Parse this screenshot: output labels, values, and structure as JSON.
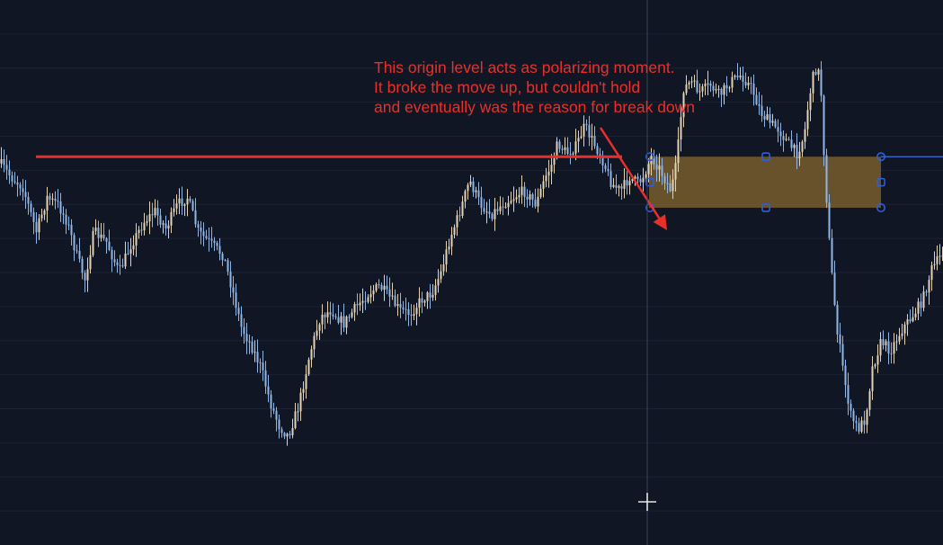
{
  "annotation": {
    "lines": [
      "This origin level acts as polarizing moment.",
      "It broke the move up, but couldn't hold",
      "and eventually was the reason for break down"
    ]
  },
  "colors": {
    "background": "#111624",
    "grid": "#1b2233",
    "candle_bull": "#e3d2b4",
    "candle_bear": "#8fb6e6",
    "level_line": "#e8302b",
    "annotation_text": "#e8302b",
    "zone_fill": "#8a6a2e",
    "zone_handles": "#2f5fd8",
    "horizontal_ray": "#3c6fe0",
    "crosshair": "#3a4256"
  },
  "icons": {
    "cursor": "crosshair-plus-icon"
  },
  "chart_data": {
    "type": "candlestick",
    "x": "bars (no visible time axis)",
    "price_path": [
      [
        0,
        18
      ],
      [
        12,
        22
      ],
      [
        25,
        25
      ],
      [
        40,
        38
      ],
      [
        52,
        28
      ],
      [
        64,
        30
      ],
      [
        74,
        35
      ],
      [
        85,
        45
      ],
      [
        94,
        52
      ],
      [
        104,
        38
      ],
      [
        118,
        41
      ],
      [
        132,
        50
      ],
      [
        145,
        42
      ],
      [
        160,
        35
      ],
      [
        172,
        32
      ],
      [
        184,
        37
      ],
      [
        197,
        30
      ],
      [
        208,
        28
      ],
      [
        220,
        38
      ],
      [
        236,
        42
      ],
      [
        248,
        45
      ],
      [
        258,
        55
      ],
      [
        268,
        66
      ],
      [
        280,
        72
      ],
      [
        290,
        78
      ],
      [
        300,
        88
      ],
      [
        310,
        95
      ],
      [
        320,
        98
      ],
      [
        332,
        89
      ],
      [
        344,
        74
      ],
      [
        356,
        63
      ],
      [
        368,
        61
      ],
      [
        382,
        65
      ],
      [
        396,
        60
      ],
      [
        410,
        56
      ],
      [
        422,
        54
      ],
      [
        432,
        57
      ],
      [
        444,
        61
      ],
      [
        456,
        62
      ],
      [
        468,
        58
      ],
      [
        480,
        56
      ],
      [
        490,
        50
      ],
      [
        500,
        40
      ],
      [
        510,
        33
      ],
      [
        522,
        23
      ],
      [
        534,
        30
      ],
      [
        546,
        33
      ],
      [
        558,
        30
      ],
      [
        570,
        28
      ],
      [
        582,
        26
      ],
      [
        596,
        30
      ],
      [
        606,
        22
      ],
      [
        614,
        18
      ],
      [
        620,
        12
      ],
      [
        630,
        15
      ],
      [
        640,
        13
      ],
      [
        650,
        7
      ],
      [
        660,
        12
      ],
      [
        670,
        17
      ],
      [
        680,
        24
      ],
      [
        690,
        26
      ],
      [
        700,
        22
      ],
      [
        710,
        24
      ],
      [
        718,
        20
      ],
      [
        724,
        16
      ],
      [
        732,
        19
      ],
      [
        740,
        23
      ],
      [
        746,
        26
      ],
      [
        752,
        18
      ],
      [
        760,
        -4
      ],
      [
        768,
        -6
      ],
      [
        778,
        -3
      ],
      [
        790,
        -5
      ],
      [
        800,
        -2
      ],
      [
        812,
        -6
      ],
      [
        824,
        -8
      ],
      [
        836,
        -4
      ],
      [
        846,
        3
      ],
      [
        856,
        6
      ],
      [
        866,
        8
      ],
      [
        876,
        12
      ],
      [
        886,
        15
      ],
      [
        894,
        10
      ],
      [
        900,
        -2
      ],
      [
        906,
        -10
      ],
      [
        912,
        -8
      ],
      [
        917,
        20
      ],
      [
        923,
        45
      ],
      [
        930,
        65
      ],
      [
        938,
        80
      ],
      [
        946,
        92
      ],
      [
        954,
        96
      ],
      [
        962,
        93
      ],
      [
        970,
        78
      ],
      [
        980,
        70
      ],
      [
        990,
        73
      ],
      [
        1002,
        67
      ],
      [
        1014,
        63
      ],
      [
        1026,
        58
      ],
      [
        1036,
        49
      ],
      [
        1049,
        44
      ]
    ],
    "level": {
      "from_x": 40,
      "to_x": 692,
      "y": 16
    },
    "zone": {
      "from_x": 722,
      "to_x": 980,
      "top_y": 16,
      "bottom_y": 31
    },
    "handles": [
      {
        "x": 723,
        "y": 16
      },
      {
        "x": 723,
        "y": 23.5
      },
      {
        "x": 723,
        "y": 31
      },
      {
        "x": 852,
        "y": 16
      },
      {
        "x": 852,
        "y": 31
      },
      {
        "x": 980,
        "y": 16
      },
      {
        "x": 980,
        "y": 23.5
      },
      {
        "x": 980,
        "y": 31
      }
    ],
    "ray": {
      "from_x": 980,
      "y": 16
    },
    "arrow": {
      "from": [
        668,
        142
      ],
      "to": [
        742,
        256
      ]
    },
    "ylim": [
      -30,
      130
    ]
  }
}
